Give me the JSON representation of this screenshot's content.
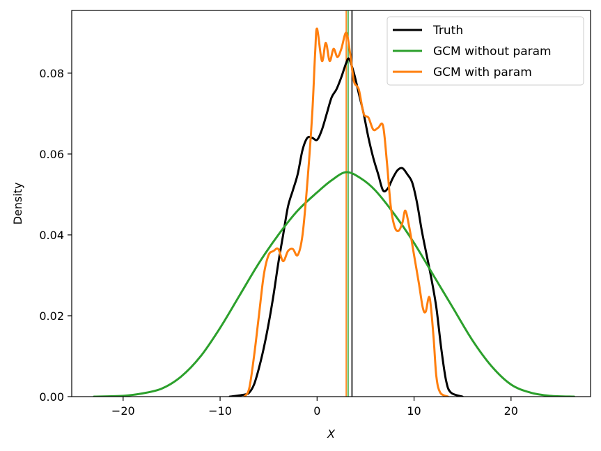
{
  "chart_data": {
    "type": "line",
    "title": "",
    "xlabel": "X",
    "ylabel": "Density",
    "xlim": [
      -25.3,
      28.2
    ],
    "ylim": [
      0,
      0.0955
    ],
    "x_ticks": [
      -20,
      -10,
      0,
      10,
      20
    ],
    "x_tick_labels": [
      "−20",
      "−10",
      "0",
      "10",
      "20"
    ],
    "y_ticks": [
      0.0,
      0.02,
      0.04,
      0.06,
      0.08
    ],
    "y_tick_labels": [
      "0.00",
      "0.02",
      "0.04",
      "0.06",
      "0.08"
    ],
    "grid": false,
    "legend_position": "top-right",
    "series": [
      {
        "name": "Truth",
        "color": "#000000",
        "points": [
          [
            -9,
            0.0
          ],
          [
            -7.5,
            0.0005
          ],
          [
            -7,
            0.001
          ],
          [
            -6.5,
            0.003
          ],
          [
            -6,
            0.007
          ],
          [
            -5.5,
            0.012
          ],
          [
            -5,
            0.018
          ],
          [
            -4.5,
            0.025
          ],
          [
            -4,
            0.033
          ],
          [
            -3.5,
            0.04
          ],
          [
            -3,
            0.047
          ],
          [
            -2.5,
            0.051
          ],
          [
            -2,
            0.055
          ],
          [
            -1.5,
            0.061
          ],
          [
            -1,
            0.064
          ],
          [
            -0.5,
            0.064
          ],
          [
            0,
            0.0635
          ],
          [
            0.5,
            0.066
          ],
          [
            1,
            0.07
          ],
          [
            1.5,
            0.074
          ],
          [
            2,
            0.076
          ],
          [
            2.5,
            0.079
          ],
          [
            3,
            0.0825
          ],
          [
            3.3,
            0.0835
          ],
          [
            3.8,
            0.08
          ],
          [
            4.3,
            0.075
          ],
          [
            4.8,
            0.07
          ],
          [
            5.3,
            0.064
          ],
          [
            5.8,
            0.059
          ],
          [
            6.3,
            0.055
          ],
          [
            6.8,
            0.051
          ],
          [
            7.3,
            0.0515
          ],
          [
            7.8,
            0.054
          ],
          [
            8.3,
            0.056
          ],
          [
            8.8,
            0.0565
          ],
          [
            9.3,
            0.055
          ],
          [
            9.8,
            0.053
          ],
          [
            10.3,
            0.048
          ],
          [
            10.8,
            0.041
          ],
          [
            11.3,
            0.035
          ],
          [
            11.8,
            0.029
          ],
          [
            12.3,
            0.022
          ],
          [
            12.8,
            0.012
          ],
          [
            13.3,
            0.004
          ],
          [
            13.8,
            0.001
          ],
          [
            15,
            0.0
          ]
        ]
      },
      {
        "name": "GCM without param",
        "color": "#2ca02c",
        "points": [
          [
            -23,
            0.0
          ],
          [
            -20,
            0.0002
          ],
          [
            -18,
            0.0008
          ],
          [
            -16,
            0.002
          ],
          [
            -14,
            0.005
          ],
          [
            -12,
            0.01
          ],
          [
            -10,
            0.017
          ],
          [
            -8,
            0.025
          ],
          [
            -6,
            0.033
          ],
          [
            -4,
            0.04
          ],
          [
            -2,
            0.046
          ],
          [
            0,
            0.0505
          ],
          [
            1.5,
            0.0535
          ],
          [
            3,
            0.0555
          ],
          [
            4.5,
            0.054
          ],
          [
            6,
            0.051
          ],
          [
            8,
            0.045
          ],
          [
            10,
            0.038
          ],
          [
            12,
            0.03
          ],
          [
            14,
            0.022
          ],
          [
            16,
            0.014
          ],
          [
            18,
            0.0075
          ],
          [
            20,
            0.003
          ],
          [
            22,
            0.001
          ],
          [
            24,
            0.0002
          ],
          [
            26.5,
            0.0
          ]
        ]
      },
      {
        "name": "GCM with param",
        "color": "#ff7f0e",
        "points": [
          [
            -7.5,
            0.0
          ],
          [
            -7,
            0.002
          ],
          [
            -6.5,
            0.01
          ],
          [
            -6,
            0.02
          ],
          [
            -5.5,
            0.03
          ],
          [
            -5,
            0.035
          ],
          [
            -4.5,
            0.036
          ],
          [
            -4,
            0.0365
          ],
          [
            -3.5,
            0.0335
          ],
          [
            -3,
            0.036
          ],
          [
            -2.5,
            0.0365
          ],
          [
            -2,
            0.035
          ],
          [
            -1.5,
            0.04
          ],
          [
            -1,
            0.053
          ],
          [
            -0.5,
            0.07
          ],
          [
            -0.2,
            0.085
          ],
          [
            0,
            0.091
          ],
          [
            0.5,
            0.083
          ],
          [
            0.9,
            0.0875
          ],
          [
            1.3,
            0.083
          ],
          [
            1.7,
            0.086
          ],
          [
            2.1,
            0.084
          ],
          [
            2.5,
            0.086
          ],
          [
            3,
            0.09
          ],
          [
            3.4,
            0.085
          ],
          [
            3.8,
            0.078
          ],
          [
            4.3,
            0.076
          ],
          [
            4.8,
            0.07
          ],
          [
            5.3,
            0.069
          ],
          [
            5.8,
            0.066
          ],
          [
            6.3,
            0.0665
          ],
          [
            6.8,
            0.067
          ],
          [
            7.2,
            0.058
          ],
          [
            7.6,
            0.047
          ],
          [
            8,
            0.042
          ],
          [
            8.4,
            0.041
          ],
          [
            8.8,
            0.043
          ],
          [
            9.1,
            0.046
          ],
          [
            9.5,
            0.042
          ],
          [
            10,
            0.035
          ],
          [
            10.5,
            0.028
          ],
          [
            10.9,
            0.022
          ],
          [
            11.2,
            0.021
          ],
          [
            11.6,
            0.0245
          ],
          [
            12,
            0.015
          ],
          [
            12.3,
            0.005
          ],
          [
            12.7,
            0.001
          ],
          [
            13.5,
            0.0
          ]
        ]
      }
    ],
    "vertical_lines": [
      {
        "x": 3.6,
        "color": "#000000"
      },
      {
        "x": 3.2,
        "color": "#2ca02c"
      },
      {
        "x": 3.0,
        "color": "#ff7f0e"
      }
    ]
  }
}
